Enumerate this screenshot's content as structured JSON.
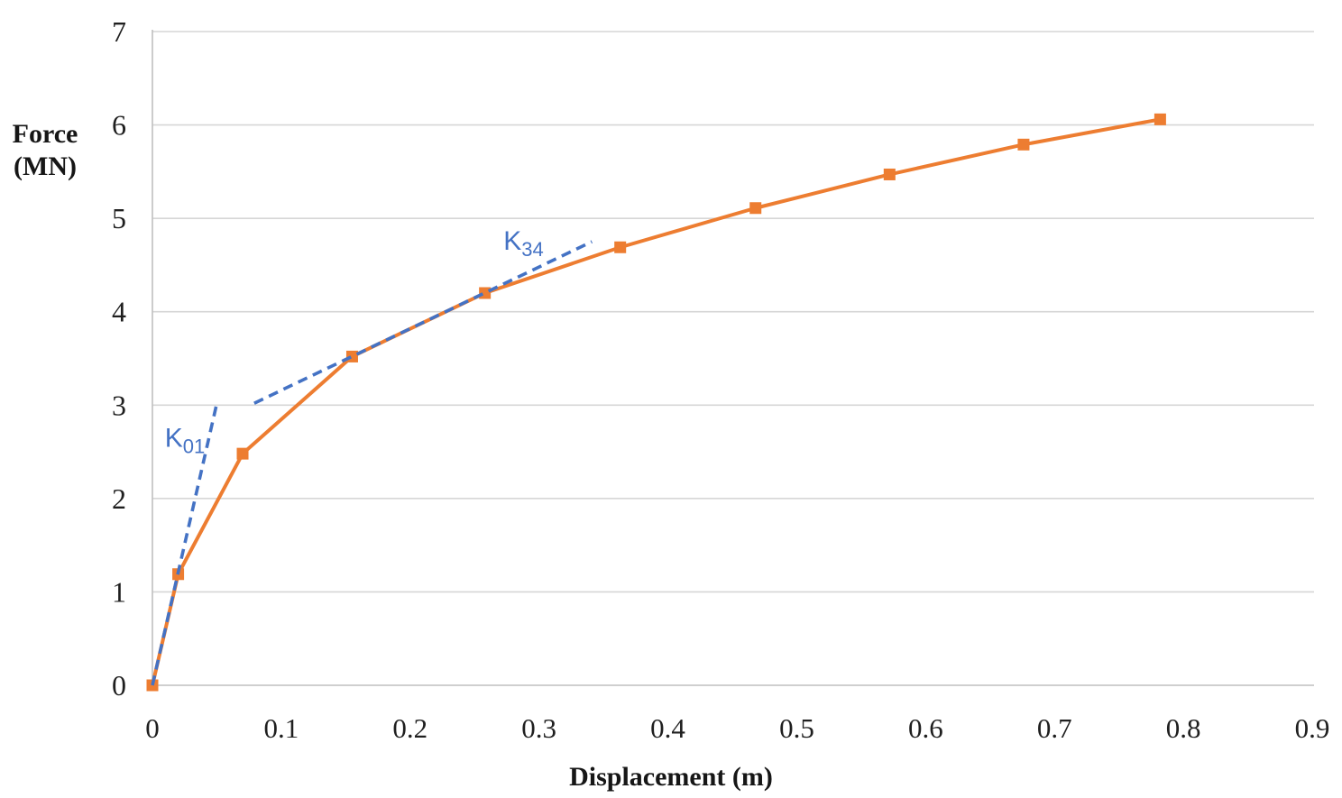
{
  "chart_data": {
    "type": "line",
    "title": "",
    "xlabel": "Displacement (m)",
    "ylabel": "Force (MN)",
    "ylabel_lines": [
      "Force",
      "(MN)"
    ],
    "xlim": [
      0,
      0.9
    ],
    "ylim": [
      0,
      7
    ],
    "x_tick_labels": [
      "0",
      "0.1",
      "0.2",
      "0.3",
      "0.4",
      "0.5",
      "0.6",
      "0.7",
      "0.8",
      "0.9"
    ],
    "x_tick_values": [
      0,
      0.1,
      0.2,
      0.3,
      0.4,
      0.5,
      0.6,
      0.7,
      0.8,
      0.9
    ],
    "y_tick_labels": [
      "0",
      "1",
      "2",
      "3",
      "4",
      "5",
      "6",
      "7"
    ],
    "y_tick_values": [
      0,
      1,
      2,
      3,
      4,
      5,
      6,
      7
    ],
    "grid": "horizontal-only",
    "legend_position": "none",
    "colors": {
      "series": "#ED7D31",
      "tangent": "#4472C4",
      "gridline": "#D6D6D6",
      "axis": "#BFBFBF",
      "tick_text": "#1F1F1F"
    },
    "series": [
      {
        "name": "force-displacement-curve",
        "style": "solid-with-markers",
        "marker": "square",
        "color": "#ED7D31",
        "points": [
          [
            0,
            0
          ],
          [
            0.02,
            1.19
          ],
          [
            0.07,
            2.48
          ],
          [
            0.155,
            3.52
          ],
          [
            0.258,
            4.2
          ],
          [
            0.363,
            4.69
          ],
          [
            0.468,
            5.11
          ],
          [
            0.572,
            5.47
          ],
          [
            0.676,
            5.79
          ],
          [
            0.782,
            6.06
          ]
        ]
      },
      {
        "name": "k01-secant-line",
        "style": "dashed",
        "marker": "none",
        "color": "#4472C4",
        "points": [
          [
            0,
            0
          ],
          [
            0.05,
            3.02
          ]
        ]
      },
      {
        "name": "k34-secant-line",
        "style": "dashed",
        "marker": "none",
        "color": "#4472C4",
        "points": [
          [
            0.079,
            3.02
          ],
          [
            0.341,
            4.75
          ]
        ]
      }
    ],
    "annotations": [
      {
        "name": "k01-label",
        "base": "K",
        "sub": "01",
        "x": 0.0252,
        "y": 2.66,
        "color": "#4472C4"
      },
      {
        "name": "k34-label",
        "base": "K",
        "sub": "34",
        "x": 0.288,
        "y": 4.77,
        "color": "#4472C4"
      }
    ]
  }
}
